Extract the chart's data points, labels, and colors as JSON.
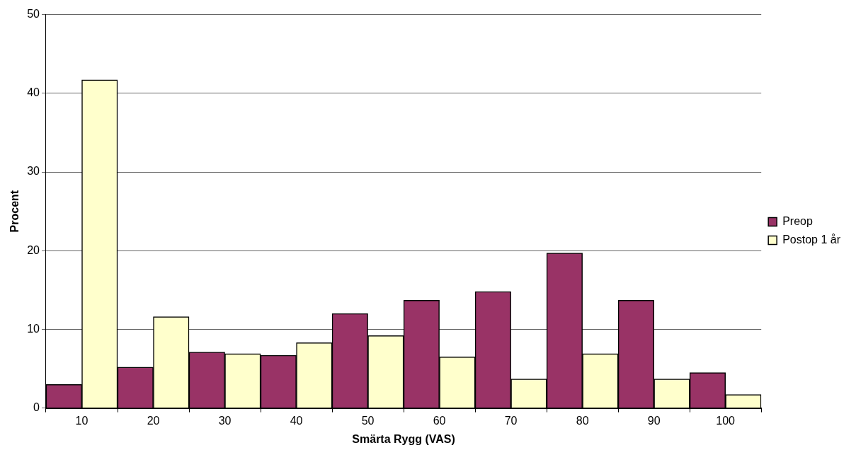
{
  "chart_data": {
    "type": "bar",
    "xlabel": "Smärta Rygg (VAS)",
    "ylabel": "Procent",
    "categories": [
      "10",
      "20",
      "30",
      "40",
      "50",
      "60",
      "70",
      "80",
      "90",
      "100"
    ],
    "series": [
      {
        "name": "Preop",
        "color": "#993366",
        "values": [
          3.0,
          5.2,
          7.1,
          6.7,
          12.0,
          13.7,
          14.8,
          19.7,
          13.7,
          4.5
        ]
      },
      {
        "name": "Postop 1 år",
        "color": "#ffffcc",
        "values": [
          41.7,
          11.6,
          6.9,
          8.3,
          9.2,
          6.5,
          3.7,
          6.9,
          3.7,
          1.7
        ]
      }
    ],
    "ylim": [
      0,
      50
    ],
    "yticks": [
      0,
      10,
      20,
      30,
      40,
      50
    ],
    "grid": "y",
    "legend": "right"
  }
}
